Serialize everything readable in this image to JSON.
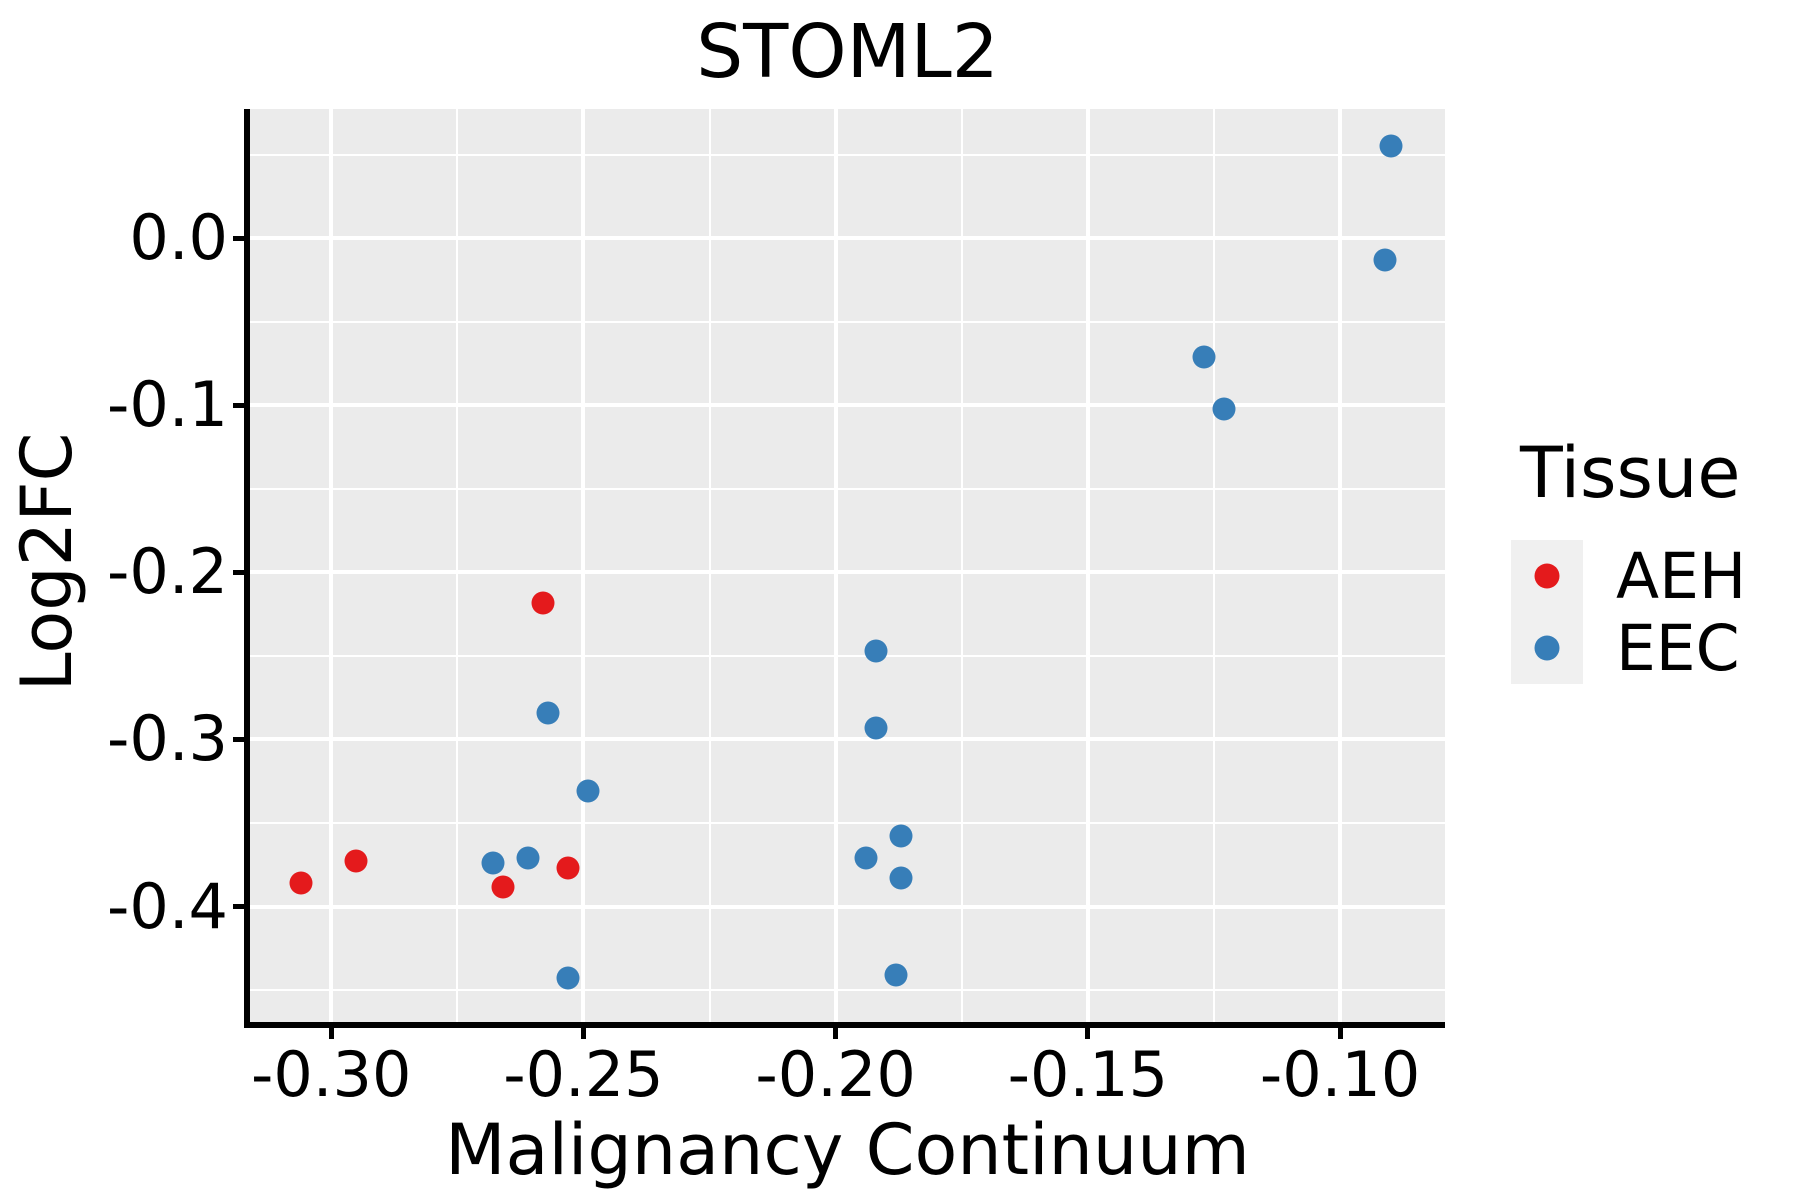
{
  "title": "STOML2",
  "legend": {
    "title": "Tissue",
    "entries": [
      {
        "label": "AEH",
        "color": "#E41A1C"
      },
      {
        "label": "EEC",
        "color": "#377EB8"
      }
    ]
  },
  "chart_data": {
    "type": "scatter",
    "title": "STOML2",
    "xlabel": "Malignancy Continuum",
    "ylabel": "Log2FC",
    "xlim": [
      -0.3161,
      -0.0792
    ],
    "ylim": [
      -0.4691,
      0.0774
    ],
    "grid": "major and minor white gridlines on grey panel",
    "legend_position": "right",
    "panel_background": "#EBEBEB",
    "x_ticks": [
      -0.3,
      -0.25,
      -0.2,
      -0.15,
      -0.1
    ],
    "x_tick_labels": [
      "-0.30",
      "-0.25",
      "-0.20",
      "-0.15",
      "-0.10"
    ],
    "x_minor_ticks": [
      -0.275,
      -0.225,
      -0.175,
      -0.125
    ],
    "y_ticks": [
      0.0,
      -0.1,
      -0.2,
      -0.3,
      -0.4
    ],
    "y_tick_labels": [
      "0.0",
      "-0.1",
      "-0.2",
      "-0.3",
      "-0.4"
    ],
    "y_minor_ticks": [
      0.05,
      -0.05,
      -0.15,
      -0.25,
      -0.35,
      -0.45
    ],
    "series": [
      {
        "name": "AEH",
        "color": "#E41A1C",
        "points": [
          [
            -0.306,
            -0.386
          ],
          [
            -0.295,
            -0.373
          ],
          [
            -0.266,
            -0.388
          ],
          [
            -0.258,
            -0.218
          ],
          [
            -0.253,
            -0.377
          ]
        ]
      },
      {
        "name": "EEC",
        "color": "#377EB8",
        "points": [
          [
            -0.268,
            -0.374
          ],
          [
            -0.261,
            -0.371
          ],
          [
            -0.257,
            -0.284
          ],
          [
            -0.253,
            -0.443
          ],
          [
            -0.249,
            -0.331
          ],
          [
            -0.194,
            -0.371
          ],
          [
            -0.192,
            -0.247
          ],
          [
            -0.192,
            -0.293
          ],
          [
            -0.188,
            -0.441
          ],
          [
            -0.187,
            -0.358
          ],
          [
            -0.187,
            -0.383
          ],
          [
            -0.127,
            -0.071
          ],
          [
            -0.123,
            -0.102
          ],
          [
            -0.091,
            -0.013
          ],
          [
            -0.09,
            0.055
          ]
        ]
      }
    ]
  }
}
